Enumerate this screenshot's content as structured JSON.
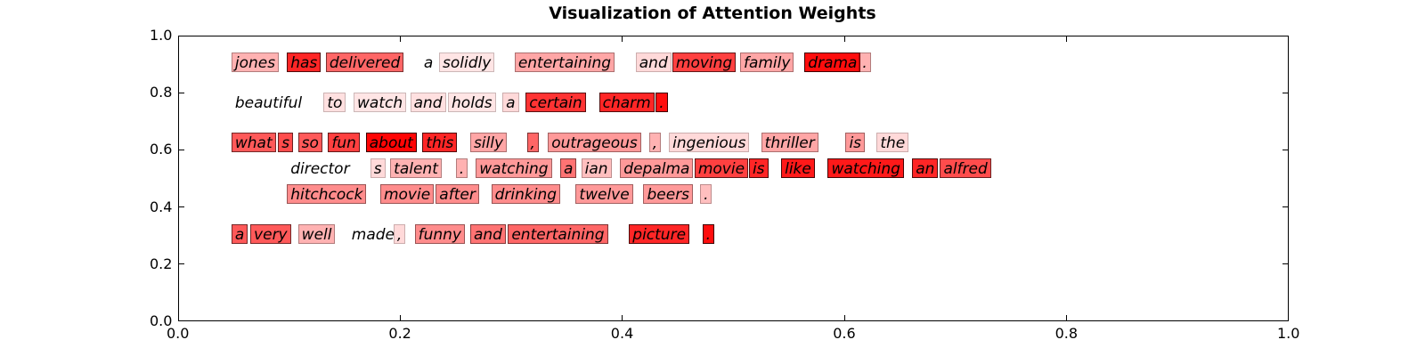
{
  "chart_data": {
    "type": "other",
    "title": "Visualization of Attention Weights",
    "xlim": [
      0.0,
      1.0
    ],
    "ylim": [
      0.0,
      1.0
    ],
    "x_ticks": [
      "0.0",
      "0.2",
      "0.4",
      "0.6",
      "0.8",
      "1.0"
    ],
    "y_ticks": [
      "0.0",
      "0.2",
      "0.4",
      "0.6",
      "0.8",
      "1.0"
    ],
    "highlight_color": "#ff0000",
    "tokens": [
      {
        "text": "jones",
        "x": 0.048,
        "y": 0.905,
        "weight": 0.3
      },
      {
        "text": "has",
        "x": 0.098,
        "y": 0.905,
        "weight": 0.85
      },
      {
        "text": "delivered",
        "x": 0.133,
        "y": 0.905,
        "weight": 0.6
      },
      {
        "text": "a",
        "x": 0.218,
        "y": 0.905,
        "weight": 0.0
      },
      {
        "text": "solidly",
        "x": 0.235,
        "y": 0.905,
        "weight": 0.1
      },
      {
        "text": "entertaining",
        "x": 0.303,
        "y": 0.905,
        "weight": 0.35
      },
      {
        "text": "and",
        "x": 0.412,
        "y": 0.905,
        "weight": 0.15
      },
      {
        "text": "moving",
        "x": 0.445,
        "y": 0.905,
        "weight": 0.75
      },
      {
        "text": "family",
        "x": 0.506,
        "y": 0.905,
        "weight": 0.35
      },
      {
        "text": "drama",
        "x": 0.564,
        "y": 0.905,
        "weight": 0.95
      },
      {
        "text": ".",
        "x": 0.613,
        "y": 0.905,
        "weight": 0.3
      },
      {
        "text": "beautiful",
        "x": 0.048,
        "y": 0.765,
        "weight": 0.0
      },
      {
        "text": "to",
        "x": 0.131,
        "y": 0.765,
        "weight": 0.12
      },
      {
        "text": "watch",
        "x": 0.158,
        "y": 0.765,
        "weight": 0.1
      },
      {
        "text": "and",
        "x": 0.209,
        "y": 0.765,
        "weight": 0.12
      },
      {
        "text": "holds",
        "x": 0.243,
        "y": 0.765,
        "weight": 0.1
      },
      {
        "text": "a",
        "x": 0.292,
        "y": 0.765,
        "weight": 0.15
      },
      {
        "text": "certain",
        "x": 0.313,
        "y": 0.765,
        "weight": 0.8
      },
      {
        "text": "charm",
        "x": 0.379,
        "y": 0.765,
        "weight": 0.85
      },
      {
        "text": ".",
        "x": 0.43,
        "y": 0.765,
        "weight": 0.95
      },
      {
        "text": "what",
        "x": 0.048,
        "y": 0.625,
        "weight": 0.65
      },
      {
        "text": "s",
        "x": 0.09,
        "y": 0.625,
        "weight": 0.7
      },
      {
        "text": "so",
        "x": 0.108,
        "y": 0.625,
        "weight": 0.65
      },
      {
        "text": "fun",
        "x": 0.135,
        "y": 0.625,
        "weight": 0.75
      },
      {
        "text": "about",
        "x": 0.169,
        "y": 0.625,
        "weight": 0.98
      },
      {
        "text": "this",
        "x": 0.22,
        "y": 0.625,
        "weight": 0.85
      },
      {
        "text": "silly",
        "x": 0.263,
        "y": 0.625,
        "weight": 0.35
      },
      {
        "text": ",",
        "x": 0.314,
        "y": 0.625,
        "weight": 0.6
      },
      {
        "text": "outrageous",
        "x": 0.333,
        "y": 0.625,
        "weight": 0.4
      },
      {
        "text": ",",
        "x": 0.424,
        "y": 0.625,
        "weight": 0.3
      },
      {
        "text": "ingenious",
        "x": 0.442,
        "y": 0.625,
        "weight": 0.15
      },
      {
        "text": "thriller",
        "x": 0.525,
        "y": 0.625,
        "weight": 0.35
      },
      {
        "text": "is",
        "x": 0.601,
        "y": 0.625,
        "weight": 0.4
      },
      {
        "text": "the",
        "x": 0.629,
        "y": 0.625,
        "weight": 0.15
      },
      {
        "text": "director",
        "x": 0.098,
        "y": 0.535,
        "weight": 0.0
      },
      {
        "text": "s",
        "x": 0.173,
        "y": 0.535,
        "weight": 0.15
      },
      {
        "text": "talent",
        "x": 0.191,
        "y": 0.535,
        "weight": 0.3
      },
      {
        "text": ".",
        "x": 0.25,
        "y": 0.535,
        "weight": 0.3
      },
      {
        "text": "watching",
        "x": 0.268,
        "y": 0.535,
        "weight": 0.4
      },
      {
        "text": "a",
        "x": 0.344,
        "y": 0.535,
        "weight": 0.55
      },
      {
        "text": "ian",
        "x": 0.363,
        "y": 0.535,
        "weight": 0.25
      },
      {
        "text": "depalma",
        "x": 0.398,
        "y": 0.535,
        "weight": 0.4
      },
      {
        "text": "movie",
        "x": 0.465,
        "y": 0.535,
        "weight": 0.75
      },
      {
        "text": "is",
        "x": 0.514,
        "y": 0.535,
        "weight": 0.85
      },
      {
        "text": "like",
        "x": 0.543,
        "y": 0.535,
        "weight": 0.9
      },
      {
        "text": "watching",
        "x": 0.585,
        "y": 0.535,
        "weight": 0.9
      },
      {
        "text": "an",
        "x": 0.661,
        "y": 0.535,
        "weight": 0.85
      },
      {
        "text": "alfred",
        "x": 0.686,
        "y": 0.535,
        "weight": 0.7
      },
      {
        "text": "hitchcock",
        "x": 0.098,
        "y": 0.445,
        "weight": 0.45
      },
      {
        "text": "movie",
        "x": 0.182,
        "y": 0.445,
        "weight": 0.45
      },
      {
        "text": "after",
        "x": 0.232,
        "y": 0.445,
        "weight": 0.45
      },
      {
        "text": "drinking",
        "x": 0.282,
        "y": 0.445,
        "weight": 0.45
      },
      {
        "text": "twelve",
        "x": 0.358,
        "y": 0.445,
        "weight": 0.4
      },
      {
        "text": "beers",
        "x": 0.419,
        "y": 0.445,
        "weight": 0.4
      },
      {
        "text": ".",
        "x": 0.47,
        "y": 0.445,
        "weight": 0.25
      },
      {
        "text": "a",
        "x": 0.048,
        "y": 0.305,
        "weight": 0.65
      },
      {
        "text": "very",
        "x": 0.065,
        "y": 0.305,
        "weight": 0.65
      },
      {
        "text": "well",
        "x": 0.108,
        "y": 0.305,
        "weight": 0.3
      },
      {
        "text": "made",
        "x": 0.153,
        "y": 0.305,
        "weight": 0.0
      },
      {
        "text": ",",
        "x": 0.194,
        "y": 0.305,
        "weight": 0.15
      },
      {
        "text": "funny",
        "x": 0.213,
        "y": 0.305,
        "weight": 0.45
      },
      {
        "text": "and",
        "x": 0.263,
        "y": 0.305,
        "weight": 0.55
      },
      {
        "text": "entertaining",
        "x": 0.297,
        "y": 0.305,
        "weight": 0.6
      },
      {
        "text": "picture",
        "x": 0.406,
        "y": 0.305,
        "weight": 0.85
      },
      {
        "text": ".",
        "x": 0.472,
        "y": 0.305,
        "weight": 0.95
      }
    ]
  }
}
